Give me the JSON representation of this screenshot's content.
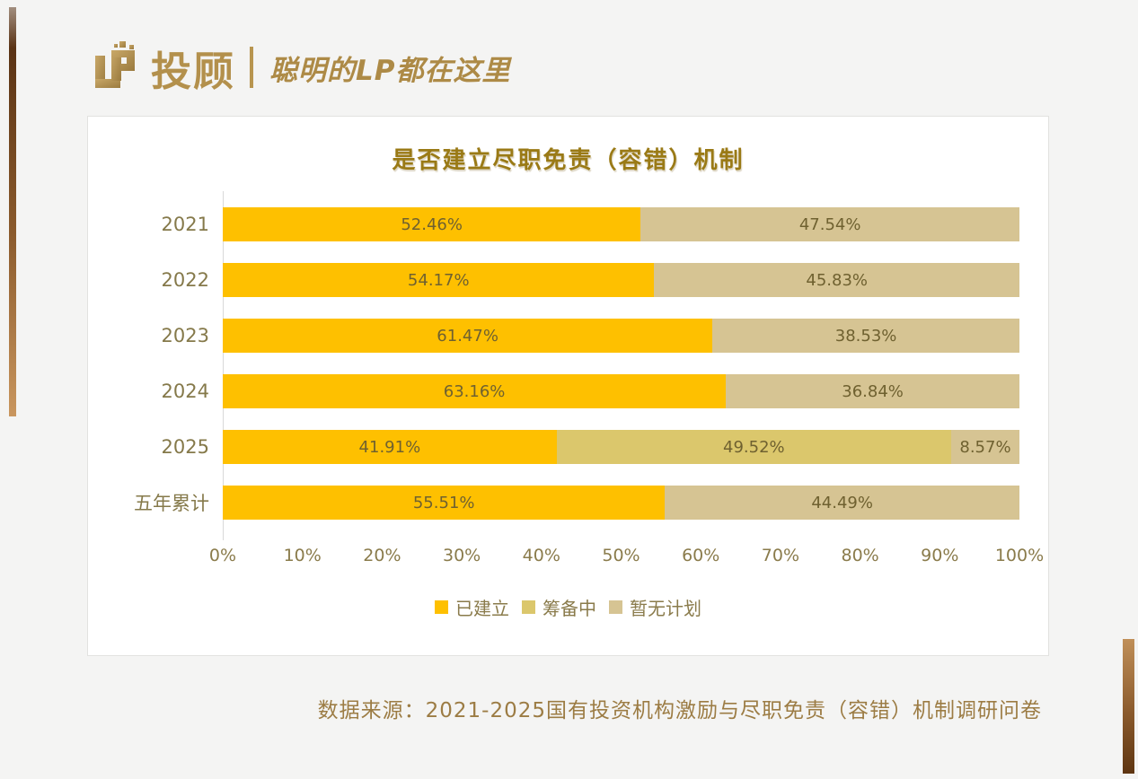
{
  "header": {
    "logo_monogram": "LP",
    "logo_text": "投顾",
    "tagline": "聪明的LP都在这里"
  },
  "chart_data": {
    "type": "bar",
    "orientation": "horizontal",
    "stacked": true,
    "title": "是否建立尽职免责（容错）机制",
    "categories": [
      "2021",
      "2022",
      "2023",
      "2024",
      "2025",
      "五年累计"
    ],
    "series": [
      {
        "name": "已建立",
        "color": "#FEC000",
        "values": [
          52.46,
          54.17,
          61.47,
          63.16,
          41.91,
          55.51
        ]
      },
      {
        "name": "筹备中",
        "color": "#DBC76C",
        "values": [
          0,
          0,
          0,
          0,
          49.52,
          0
        ]
      },
      {
        "name": "暂无计划",
        "color": "#D6C493",
        "values": [
          47.54,
          45.83,
          38.53,
          36.84,
          8.57,
          44.49
        ]
      }
    ],
    "value_suffix": "%",
    "value_decimals": 2,
    "xlim": [
      0,
      100
    ],
    "xticks": [
      "0%",
      "10%",
      "20%",
      "30%",
      "40%",
      "50%",
      "60%",
      "70%",
      "80%",
      "90%",
      "100%"
    ],
    "legend_position": "bottom",
    "grid": false
  },
  "footer": {
    "source": "数据来源：2021-2025国有投资机构激励与尽职免责（容错）机制调研问卷"
  },
  "colors": {
    "bar_established": "#FEC000",
    "bar_preparing": "#DBC76C",
    "bar_no_plan": "#D6C493",
    "title_text": "#9A7A16",
    "axis_text": "#8A7B4B",
    "category_text": "#85794A",
    "value_text": "#6F6130",
    "logo_gold": "#B3904C",
    "source_text": "#9C7C44",
    "accent_brown_dark": "#5E3511",
    "accent_brown_light": "#C9965E",
    "card_background": "#FFFFFF",
    "page_background": "#F4F4F3"
  }
}
